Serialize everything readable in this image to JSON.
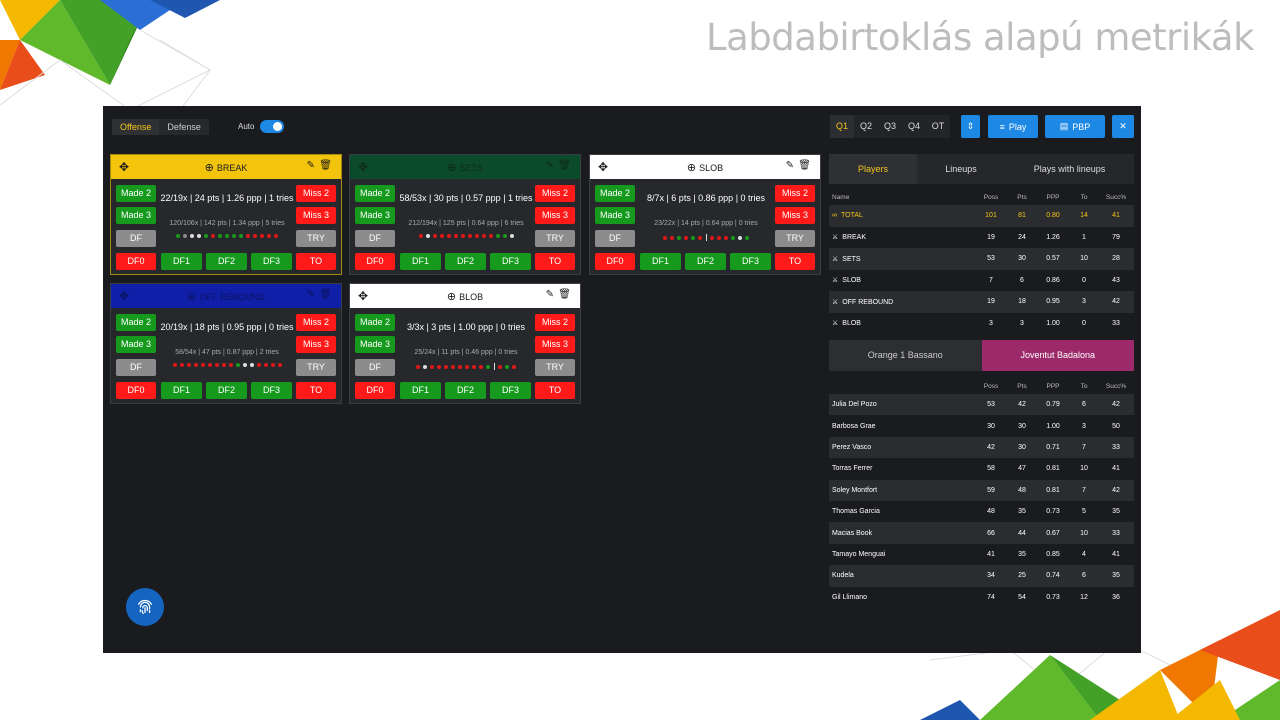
{
  "slide_title": "Labdabirtoklás alapú metrikák",
  "topbar": {
    "offense": "Offense",
    "defense": "Defense",
    "auto": "Auto",
    "quarters": [
      "Q1",
      "Q2",
      "Q3",
      "Q4",
      "OT"
    ],
    "play": "Play",
    "pbp": "PBP",
    "close": "✕"
  },
  "labels": {
    "made2": "Made 2",
    "made3": "Made 3",
    "miss2": "Miss 2",
    "miss3": "Miss 3",
    "df": "DF",
    "try": "TRY",
    "df0": "DF0",
    "df1": "DF1",
    "df2": "DF2",
    "df3": "DF3",
    "to": "TO"
  },
  "panels": [
    {
      "title": "BREAK",
      "header_bg": "#f2c40c",
      "header_fg": "#1a1a1a",
      "main": "22/19x | 24 pts | 1.26 ppp | 1 tries",
      "sub": "120/106x | 142 pts | 1.34 ppp | 5 tries",
      "dots": [
        "g",
        "gy",
        "w",
        "w",
        "g",
        "r",
        "g",
        "g",
        "g",
        "g",
        "r",
        "r",
        "r",
        "r",
        "r"
      ],
      "sep": -1
    },
    {
      "title": "SETS",
      "header_bg": "#0b4a2a",
      "header_fg": "#0f2a1a",
      "main": "58/53x | 30 pts | 0.57 ppp | 1 tries",
      "sub": "212/194x | 125 pts | 0.64 ppp | 6 tries",
      "dots": [
        "r",
        "w",
        "r",
        "r",
        "r",
        "r",
        "r",
        "r",
        "r",
        "r",
        "r",
        "g",
        "g",
        "w"
      ],
      "sep": -1
    },
    {
      "title": "SLOB",
      "header_bg": "#ffffff",
      "header_fg": "#1a1a1a",
      "main": "8/7x | 6 pts | 0.86 ppp | 0 tries",
      "sub": "23/22x | 14 pts | 0.64 ppp | 0 tries",
      "dots": [
        "r",
        "r",
        "g",
        "r",
        "g",
        "r",
        "r",
        "r",
        "r",
        "g",
        "w",
        "g"
      ],
      "sep": 5
    },
    {
      "title": "OFF REBOUND",
      "header_bg": "#0f1fa8",
      "header_fg": "#0b1460",
      "main": "20/19x | 18 pts | 0.95 ppp | 0 tries",
      "sub": "58/54x | 47 pts | 0.87 ppp | 2 tries",
      "dots": [
        "r",
        "r",
        "r",
        "r",
        "r",
        "r",
        "r",
        "r",
        "r",
        "g",
        "w",
        "w",
        "r",
        "r",
        "r",
        "r"
      ],
      "sep": -1
    },
    {
      "title": "BLOB",
      "header_bg": "#ffffff",
      "header_fg": "#1a1a1a",
      "main": "3/3x | 3 pts | 1.00 ppp | 0 tries",
      "sub": "25/24x | 11 pts | 0.46 ppp | 0 tries",
      "dots": [
        "r",
        "w",
        "r",
        "r",
        "r",
        "r",
        "r",
        "r",
        "r",
        "r",
        "g",
        "r",
        "g",
        "r"
      ],
      "sep": 10
    }
  ],
  "right_tabs": [
    "Players",
    "Lineups",
    "Plays with lineups"
  ],
  "plays_table": {
    "headers": [
      "Name",
      "Poss",
      "Pts",
      "PPP",
      "To",
      "Succ%"
    ],
    "rows": [
      {
        "name": "TOTAL",
        "icon": "∞",
        "vals": [
          "101",
          "81",
          "0.80",
          "14",
          "41"
        ],
        "highlight": true
      },
      {
        "name": "BREAK",
        "icon": "⚔",
        "vals": [
          "19",
          "24",
          "1.26",
          "1",
          "79"
        ]
      },
      {
        "name": "SETS",
        "icon": "⚔",
        "vals": [
          "53",
          "30",
          "0.57",
          "10",
          "28"
        ]
      },
      {
        "name": "SLOB",
        "icon": "⚔",
        "vals": [
          "7",
          "6",
          "0.86",
          "0",
          "43"
        ]
      },
      {
        "name": "OFF REBOUND",
        "icon": "⚔",
        "vals": [
          "19",
          "18",
          "0.95",
          "3",
          "42"
        ]
      },
      {
        "name": "BLOB",
        "icon": "⚔",
        "vals": [
          "3",
          "3",
          "1.00",
          "0",
          "33"
        ]
      }
    ]
  },
  "teams": [
    "Orange 1 Bassano",
    "Joventut Badalona"
  ],
  "players_table": {
    "headers": [
      "",
      "Poss",
      "Pts",
      "PPP",
      "To",
      "Succ%"
    ],
    "rows": [
      {
        "name": "Julia Del Pozo",
        "vals": [
          "53",
          "42",
          "0.79",
          "6",
          "42"
        ]
      },
      {
        "name": "Barbosa Grae",
        "vals": [
          "30",
          "30",
          "1.00",
          "3",
          "50"
        ]
      },
      {
        "name": "Perez Vasco",
        "vals": [
          "42",
          "30",
          "0.71",
          "7",
          "33"
        ]
      },
      {
        "name": "Torras Ferrer",
        "vals": [
          "58",
          "47",
          "0.81",
          "10",
          "41"
        ]
      },
      {
        "name": "Soley Montfort",
        "vals": [
          "59",
          "48",
          "0.81",
          "7",
          "42"
        ]
      },
      {
        "name": "Thomas Garcia",
        "vals": [
          "48",
          "35",
          "0.73",
          "5",
          "35"
        ]
      },
      {
        "name": "Macias Book",
        "vals": [
          "66",
          "44",
          "0.67",
          "10",
          "33"
        ]
      },
      {
        "name": "Tamayo Menguai",
        "vals": [
          "41",
          "35",
          "0.85",
          "4",
          "41"
        ]
      },
      {
        "name": "Kudela",
        "vals": [
          "34",
          "25",
          "0.74",
          "6",
          "35"
        ]
      },
      {
        "name": "Gil Llimano",
        "vals": [
          "74",
          "54",
          "0.73",
          "12",
          "36"
        ]
      }
    ]
  },
  "colors": {
    "accent": "#f5c518",
    "blue": "#1e88e5",
    "green": "#159a1e",
    "red": "#ff1a1a",
    "team_sel": "#9c2a6a"
  }
}
